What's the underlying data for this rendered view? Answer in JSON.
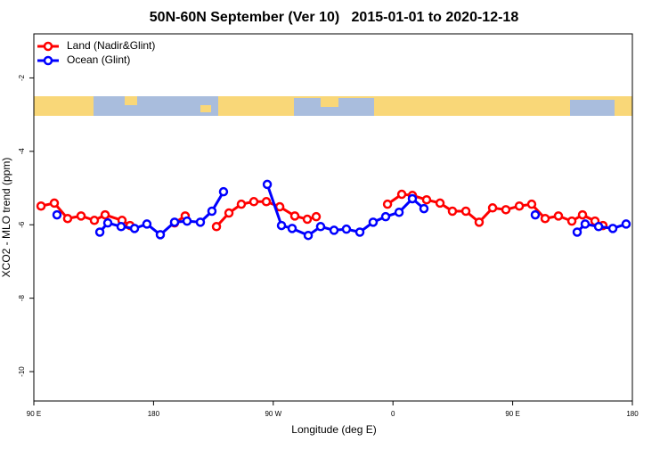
{
  "chart_data": {
    "type": "line",
    "title": "50N-60N September (Ver 10)   2015-01-01 to 2020-12-18",
    "xlabel": "Longitude (deg E)",
    "ylabel": "XCO2 - MLO trend (ppm)",
    "xlim": [
      90,
      540
    ],
    "ylim": [
      -10.8,
      -0.8
    ],
    "xticks": [
      {
        "value": 90,
        "label": "90 E"
      },
      180,
      {
        "value": 270,
        "label": "90 W"
      },
      {
        "value": 360,
        "label": "0"
      },
      {
        "value": 450,
        "label": "90 E"
      },
      {
        "value": 540,
        "label": "180"
      }
    ],
    "yticks": [
      -10,
      -8,
      -6,
      -4,
      -2
    ],
    "grid": false,
    "legend": "upper left",
    "series": [
      {
        "name": "Land (Nadir&Glint)",
        "color": "#ff0000",
        "x": [
          95.4,
          105.4,
          115.4,
          125.5,
          135.5,
          143.6,
          156.3,
          162.3,
          null,
          195.8,
          203.8,
          null,
          227.3,
          236.7,
          246.0,
          255.4,
          264.8,
          274.9,
          286.2,
          295.6,
          302.3,
          null,
          355.9,
          366.6,
          374.6,
          385.3,
          395.4,
          404.7,
          414.8,
          424.8,
          434.9,
          444.9,
          455.0,
          464.3,
          474.4,
          484.4,
          494.5,
          502.5,
          511.9,
          517.9
        ],
        "values": [
          -5.49,
          -5.41,
          -5.83,
          -5.76,
          -5.88,
          -5.73,
          -5.88,
          -6.02,
          null,
          -5.95,
          -5.76,
          null,
          -6.05,
          -5.68,
          -5.44,
          -5.37,
          -5.37,
          -5.51,
          -5.76,
          -5.85,
          -5.78,
          null,
          -5.44,
          -5.17,
          -5.2,
          -5.32,
          -5.41,
          -5.63,
          -5.63,
          -5.93,
          -5.54,
          -5.59,
          -5.49,
          -5.44,
          -5.83,
          -5.76,
          -5.9,
          -5.73,
          -5.9,
          -6.02
        ]
      },
      {
        "name": "Ocean (Glint)",
        "color": "#0000ff",
        "x": [
          107.4,
          null,
          139.6,
          145.6,
          155.6,
          165.7,
          175.0,
          185.1,
          195.8,
          205.2,
          215.2,
          223.9,
          232.6,
          null,
          265.5,
          276.2,
          284.2,
          296.3,
          305.6,
          315.7,
          325.0,
          335.1,
          345.1,
          354.5,
          364.6,
          374.6,
          383.3,
          null,
          467.0,
          null,
          498.5,
          504.5,
          514.6,
          525.3,
          535.3
        ],
        "values": [
          -5.73,
          null,
          -6.2,
          -5.95,
          -6.05,
          -6.1,
          -5.98,
          -6.27,
          -5.93,
          -5.9,
          -5.93,
          -5.63,
          -5.1,
          null,
          -4.9,
          -6.02,
          -6.1,
          -6.29,
          -6.05,
          -6.15,
          -6.12,
          -6.2,
          -5.93,
          -5.78,
          -5.66,
          -5.29,
          -5.56,
          null,
          -5.73,
          null,
          -6.2,
          -5.98,
          -6.05,
          -6.1,
          -5.98
        ]
      }
    ]
  }
}
